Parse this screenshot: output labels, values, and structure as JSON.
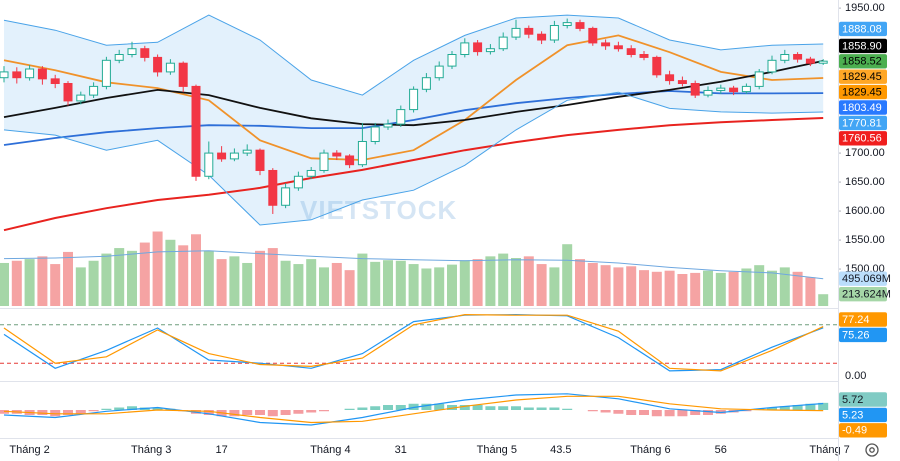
{
  "chart_data": [
    {
      "type": "candlestick",
      "watermark": "VIETSTOCK",
      "ylim": [
        1438,
        1964
      ],
      "yticks": [
        {
          "value": 1950,
          "label": "1950.00"
        },
        {
          "value": 1700,
          "label": "1700.00"
        },
        {
          "value": 1650,
          "label": "1650.00"
        },
        {
          "value": 1600,
          "label": "1600.00"
        },
        {
          "value": 1550,
          "label": "1550.00"
        },
        {
          "value": 1500,
          "label": "1500.00"
        }
      ],
      "xticks": [
        {
          "value": 2,
          "label": "Tháng 2"
        },
        {
          "value": 11.5,
          "label": "Tháng 3"
        },
        17,
        {
          "value": 25.5,
          "label": "Tháng 4"
        },
        31,
        {
          "value": 38.5,
          "label": "Tháng 5"
        },
        43.5,
        {
          "value": 50.5,
          "label": "Tháng 6"
        },
        56,
        {
          "value": 64.5,
          "label": "Tháng 7"
        }
      ],
      "up_color": "#22ab94",
      "down_color": "#f23645",
      "ohlc": [
        [
          1830,
          1850,
          1822,
          1840
        ],
        [
          1840,
          1848,
          1820,
          1830
        ],
        [
          1830,
          1852,
          1825,
          1845
        ],
        [
          1845,
          1850,
          1818,
          1828
        ],
        [
          1828,
          1835,
          1812,
          1820
        ],
        [
          1820,
          1824,
          1782,
          1790
        ],
        [
          1790,
          1806,
          1784,
          1800
        ],
        [
          1800,
          1822,
          1795,
          1815
        ],
        [
          1815,
          1866,
          1810,
          1860
        ],
        [
          1860,
          1878,
          1855,
          1870
        ],
        [
          1870,
          1892,
          1865,
          1880
        ],
        [
          1880,
          1885,
          1858,
          1865
        ],
        [
          1865,
          1870,
          1832,
          1840
        ],
        [
          1840,
          1862,
          1835,
          1855
        ],
        [
          1855,
          1858,
          1805,
          1815
        ],
        [
          1815,
          1818,
          1652,
          1660
        ],
        [
          1660,
          1720,
          1655,
          1700
        ],
        [
          1700,
          1712,
          1685,
          1690
        ],
        [
          1690,
          1708,
          1686,
          1700
        ],
        [
          1700,
          1715,
          1695,
          1705
        ],
        [
          1705,
          1708,
          1662,
          1670
        ],
        [
          1670,
          1674,
          1595,
          1610
        ],
        [
          1610,
          1648,
          1605,
          1640
        ],
        [
          1640,
          1668,
          1635,
          1660
        ],
        [
          1660,
          1676,
          1655,
          1670
        ],
        [
          1670,
          1706,
          1666,
          1700
        ],
        [
          1700,
          1705,
          1688,
          1695
        ],
        [
          1695,
          1698,
          1674,
          1680
        ],
        [
          1680,
          1752,
          1676,
          1720
        ],
        [
          1720,
          1752,
          1715,
          1745
        ],
        [
          1745,
          1758,
          1740,
          1750
        ],
        [
          1750,
          1782,
          1745,
          1775
        ],
        [
          1775,
          1815,
          1770,
          1810
        ],
        [
          1810,
          1838,
          1805,
          1830
        ],
        [
          1830,
          1858,
          1825,
          1850
        ],
        [
          1850,
          1876,
          1845,
          1870
        ],
        [
          1870,
          1898,
          1865,
          1890
        ],
        [
          1890,
          1895,
          1868,
          1875
        ],
        [
          1875,
          1888,
          1870,
          1880
        ],
        [
          1880,
          1908,
          1876,
          1900
        ],
        [
          1900,
          1930,
          1895,
          1915
        ],
        [
          1915,
          1920,
          1898,
          1905
        ],
        [
          1905,
          1910,
          1888,
          1895
        ],
        [
          1895,
          1928,
          1890,
          1920
        ],
        [
          1920,
          1932,
          1915,
          1925
        ],
        [
          1925,
          1930,
          1910,
          1915
        ],
        [
          1915,
          1918,
          1885,
          1890
        ],
        [
          1890,
          1896,
          1878,
          1885
        ],
        [
          1885,
          1892,
          1875,
          1880
        ],
        [
          1880,
          1886,
          1865,
          1870
        ],
        [
          1870,
          1876,
          1860,
          1865
        ],
        [
          1865,
          1868,
          1830,
          1835
        ],
        [
          1835,
          1842,
          1818,
          1825
        ],
        [
          1825,
          1832,
          1815,
          1820
        ],
        [
          1820,
          1825,
          1795,
          1800
        ],
        [
          1800,
          1815,
          1796,
          1808
        ],
        [
          1808,
          1818,
          1802,
          1812
        ],
        [
          1812,
          1816,
          1800,
          1806
        ],
        [
          1806,
          1820,
          1802,
          1815
        ],
        [
          1815,
          1845,
          1810,
          1840
        ],
        [
          1840,
          1868,
          1836,
          1860
        ],
        [
          1860,
          1878,
          1855,
          1870
        ],
        [
          1870,
          1874,
          1856,
          1862
        ],
        [
          1862,
          1866,
          1850,
          1855
        ],
        [
          1855,
          1862,
          1852,
          1858.52
        ]
      ],
      "volume": [
        780,
        820,
        850,
        900,
        760,
        980,
        700,
        820,
        950,
        1050,
        1000,
        1150,
        1350,
        1200,
        1100,
        1300,
        1000,
        850,
        900,
        780,
        1000,
        1050,
        820,
        760,
        850,
        700,
        780,
        650,
        950,
        800,
        830,
        820,
        760,
        680,
        700,
        750,
        830,
        850,
        900,
        950,
        870,
        900,
        760,
        700,
        1120,
        850,
        780,
        740,
        700,
        720,
        650,
        620,
        640,
        580,
        600,
        640,
        600,
        620,
        680,
        740,
        640,
        700,
        620,
        520,
        213.624
      ],
      "volume_ylim": [
        0,
        1450
      ],
      "volume_up_color": "#a5d6a7",
      "volume_down_color": "#f5a3a3",
      "line_x": [
        0,
        4,
        8,
        12,
        16,
        20,
        24,
        28,
        32,
        36,
        40,
        44,
        48,
        52,
        56,
        60,
        64
      ],
      "volume_ma": {
        "color": "#6fa8e0",
        "values": [
          860,
          870,
          900,
          980,
          1000,
          950,
          900,
          860,
          840,
          820,
          840,
          830,
          780,
          700,
          640,
          600,
          495.069
        ]
      },
      "bollinger": {
        "fill": "#e3f1fc",
        "color": "#4aa3e8",
        "upper": [
          1929,
          1912,
          1886,
          1891,
          1938,
          1895,
          1826,
          1800,
          1860,
          1903,
          1933,
          1938,
          1933,
          1895,
          1878,
          1886,
          1888.08
        ],
        "lower": [
          1740,
          1731,
          1705,
          1722,
          1662,
          1576,
          1585,
          1619,
          1636,
          1679,
          1740,
          1791,
          1805,
          1777,
          1771,
          1769,
          1770.81
        ]
      },
      "series": [
        {
          "color": "#e8231f",
          "values": [
            1567,
            1588,
            1605,
            1619,
            1628,
            1640,
            1657,
            1671,
            1688,
            1705,
            1719,
            1731,
            1740,
            1748,
            1753,
            1757,
            1760.56
          ]
        },
        {
          "color": "#2e6fd8",
          "values": [
            1714,
            1726,
            1736,
            1743,
            1748,
            1747,
            1743,
            1743,
            1757,
            1774,
            1786,
            1795,
            1802,
            1807,
            1803,
            1803,
            1803.49
          ]
        },
        {
          "color": "#f0922a",
          "values": [
            1860,
            1843,
            1822,
            1812,
            1791,
            1722,
            1691,
            1688,
            1705,
            1757,
            1826,
            1886,
            1903,
            1874,
            1840,
            1826,
            1829.45
          ]
        },
        {
          "color": "#111111",
          "values": [
            1762,
            1778,
            1795,
            1809,
            1800,
            1778,
            1760,
            1750,
            1748,
            1757,
            1771,
            1783,
            1797,
            1809,
            1823,
            1840,
            1858.9
          ]
        }
      ],
      "badges": [
        {
          "value": 1888.08,
          "label": "1888.08",
          "color": "#42a5f5",
          "text_color": "#ffffff"
        },
        {
          "value": 1858.9,
          "label": "1858.90",
          "color": "#000000",
          "text_color": "#ffffff"
        },
        {
          "value": 1858.52,
          "label": "1858.52",
          "color": "#4caf50",
          "text_color": "#000000"
        },
        {
          "value": 1829.45,
          "label": "1829.45",
          "color": "#ffa726",
          "text_color": "#000000"
        },
        {
          "value": 1829.45,
          "label": "1829.45",
          "color": "#ff9800",
          "text_color": "#000000"
        },
        {
          "value": 1803.49,
          "label": "1803.49",
          "color": "#2979ff",
          "text_color": "#ffffff"
        },
        {
          "value": 1770.81,
          "label": "1770.81",
          "color": "#42a5f5",
          "text_color": "#ffffff"
        },
        {
          "value": 1760.56,
          "label": "1760.56",
          "color": "#f01e1e",
          "text_color": "#ffffff"
        }
      ],
      "volume_badges": [
        {
          "value": 495.069,
          "label": "495.069M",
          "color": "#bbdefb",
          "text_color": "#131722"
        },
        {
          "value": 213.624,
          "label": "213.624M",
          "color": "#a5d6a7",
          "text_color": "#131722"
        }
      ]
    },
    {
      "type": "line",
      "ylim": [
        0,
        100
      ],
      "yticks": [
        {
          "value": 0,
          "label": "0.00"
        }
      ],
      "levels": [
        {
          "value": 80,
          "color": "#6e9e7d"
        },
        {
          "value": 20,
          "color": "#e53935"
        }
      ],
      "x": [
        0,
        4,
        8,
        12,
        16,
        20,
        24,
        28,
        32,
        36,
        40,
        44,
        48,
        52,
        56,
        60,
        64
      ],
      "series": [
        {
          "color": "#2196f3",
          "values": [
            65,
            12,
            40,
            75,
            25,
            20,
            12,
            35,
            85,
            95,
            96,
            94,
            60,
            8,
            10,
            45,
            75.26
          ]
        },
        {
          "color": "#ff9800",
          "values": [
            75,
            20,
            30,
            72,
            35,
            18,
            15,
            28,
            80,
            96,
            95,
            95,
            70,
            12,
            8,
            40,
            77.24
          ]
        }
      ],
      "badges": [
        {
          "value": 77.24,
          "label": "77.24",
          "color": "#ff9800",
          "text_color": "#ffffff"
        },
        {
          "value": 75.26,
          "label": "75.26",
          "color": "#2196f3",
          "text_color": "#ffffff"
        }
      ]
    },
    {
      "type": "macd",
      "ylim": [
        -20,
        20
      ],
      "x": [
        0,
        4,
        8,
        12,
        16,
        20,
        24,
        28,
        32,
        36,
        40,
        44,
        48,
        52,
        56,
        60,
        64
      ],
      "histogram": [
        -3,
        -3,
        -4,
        -4,
        -5,
        -4,
        -3,
        -1,
        1,
        2,
        3,
        2,
        2,
        1,
        -1,
        -3,
        -4,
        -5,
        -5,
        -4,
        -4,
        -5,
        -4,
        -3,
        -2,
        -1,
        0,
        1,
        2,
        3,
        4,
        4,
        5,
        5,
        5,
        4,
        4,
        4,
        3,
        3,
        3,
        2,
        2,
        2,
        1,
        0,
        -1,
        -2,
        -3,
        -4,
        -4,
        -5,
        -5,
        -5,
        -4,
        -4,
        -3,
        -2,
        -1,
        1,
        2,
        3,
        4,
        5,
        5.72
      ],
      "up_color": "#7ccfc0",
      "down_color": "#f49ca0",
      "series": [
        {
          "color": "#2196f3",
          "values": [
            -4,
            -6,
            -1,
            2,
            -3,
            -10,
            -12,
            -6,
            2,
            8,
            12,
            13,
            9,
            1,
            -2,
            2,
            5.23
          ]
        },
        {
          "color": "#ff9800",
          "values": [
            -1,
            -3,
            -3,
            0,
            -1,
            -6,
            -10,
            -9,
            -3,
            3,
            8,
            11,
            11,
            5,
            1,
            0,
            -0.49
          ]
        }
      ],
      "badges": [
        {
          "value": 5.72,
          "label": "5.72",
          "color": "#80cbc4",
          "text_color": "#131722"
        },
        {
          "value": 5.23,
          "label": "5.23",
          "color": "#2196f3",
          "text_color": "#ffffff"
        },
        {
          "value": -0.49,
          "label": "-0.49",
          "color": "#ff9800",
          "text_color": "#ffffff"
        }
      ]
    }
  ]
}
